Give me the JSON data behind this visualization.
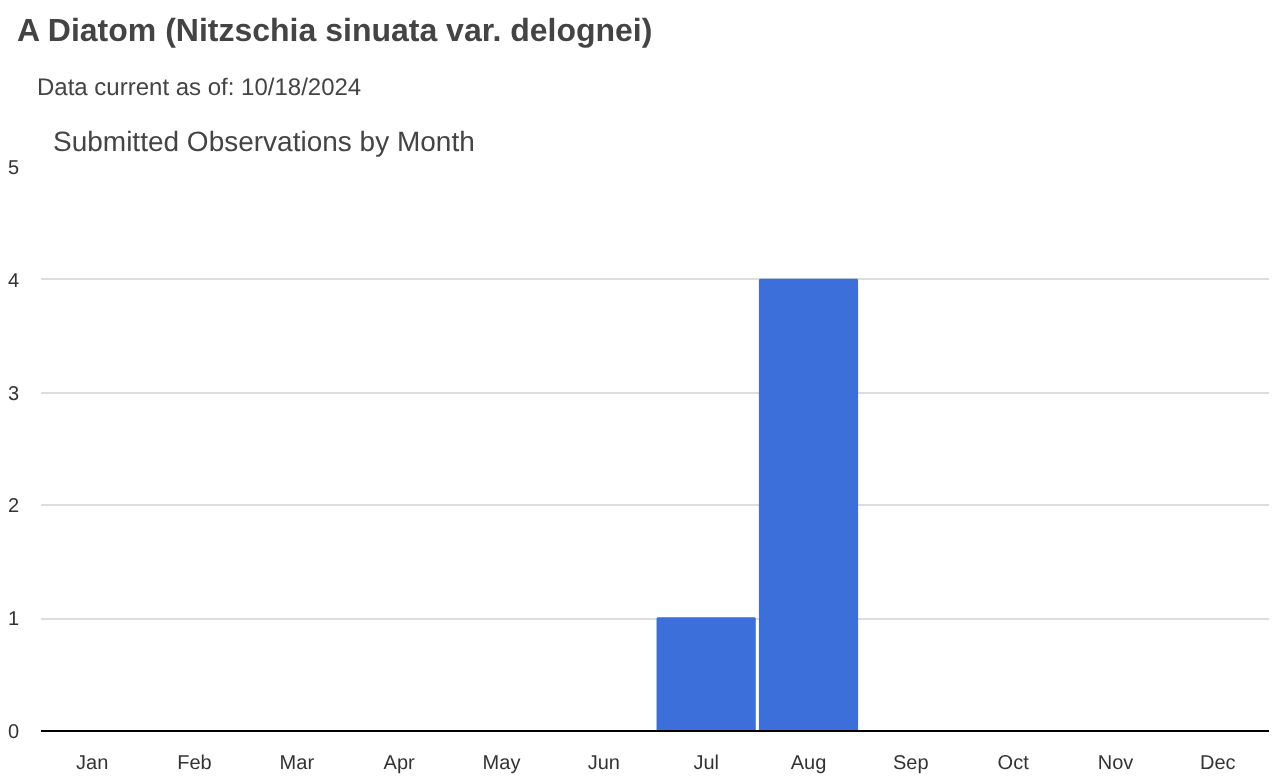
{
  "chart_data": {
    "type": "bar",
    "title": "A Diatom   (Nitzschia sinuata var. delognei)",
    "subtitle": "Data current as of: 10/18/2024",
    "annotations": [
      "Submitted Observations by Month"
    ],
    "categories": [
      "Jan",
      "Feb",
      "Mar",
      "Apr",
      "May",
      "Jun",
      "Jul",
      "Aug",
      "Sep",
      "Oct",
      "Nov",
      "Dec"
    ],
    "values": [
      0,
      0,
      0,
      0,
      0,
      0,
      1,
      4,
      0,
      0,
      0,
      0
    ],
    "color": "#3d6fdb",
    "ylim": [
      0,
      5
    ],
    "yticks": [
      0,
      1,
      2,
      3,
      4,
      5
    ],
    "grid": "y"
  }
}
